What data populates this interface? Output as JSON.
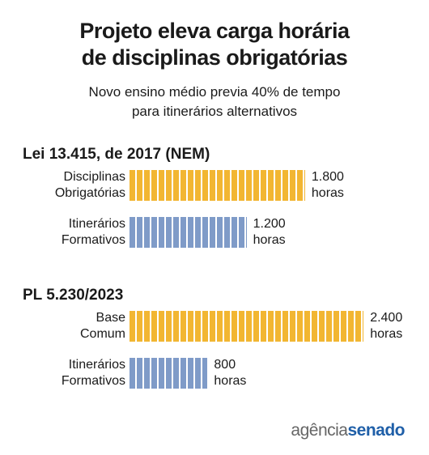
{
  "header": {
    "title": "Projeto eleva carga horária\nde disciplinas obrigatórias",
    "subtitle": "Novo ensino médio previa 40% de tempo\npara itinerários alternativos"
  },
  "chart_data": [
    {
      "type": "bar",
      "title": "Lei 13.415, de 2017 (NEM)",
      "categories": [
        "Disciplinas\nObrigatórias",
        "Itinerários\nFormativos"
      ],
      "values": [
        1800,
        1200
      ],
      "value_labels": [
        "1.800\nhoras",
        "1.200\nhoras"
      ],
      "colors": [
        "#f2b632",
        "#7f9bc8"
      ]
    },
    {
      "type": "bar",
      "title": "PL 5.230/2023",
      "categories": [
        "Base\nComum",
        "Itinerários\nFormativos"
      ],
      "values": [
        2400,
        800
      ],
      "value_labels": [
        "2.400\nhoras",
        "800\nhoras"
      ],
      "colors": [
        "#f2b632",
        "#7f9bc8"
      ]
    }
  ],
  "footer": {
    "brand_a": "agência",
    "brand_b": "senado"
  }
}
